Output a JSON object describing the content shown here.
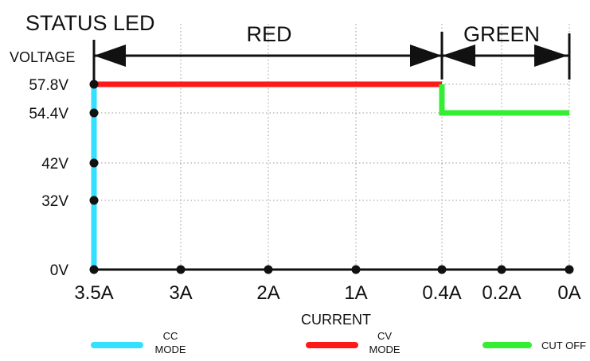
{
  "title": "STATUS LED",
  "bands": [
    {
      "label": "RED",
      "from": "3.5A",
      "to": "0.4A"
    },
    {
      "label": "GREEN",
      "from": "0.4A",
      "to": "0A"
    }
  ],
  "chart_data": {
    "type": "line",
    "xlabel": "CURRENT",
    "ylabel": "VOLTAGE",
    "x_ticks": [
      "3.5A",
      "3A",
      "2A",
      "1A",
      "0.4A",
      "0.2A",
      "0A"
    ],
    "y_ticks": [
      "0V",
      "32V",
      "42V",
      "54.4V",
      "57.8V"
    ],
    "grid": true,
    "series": [
      {
        "name": "CC MODE",
        "color": "#33e0ff",
        "points": [
          {
            "x": "3.5A",
            "y": "0V"
          },
          {
            "x": "3.5A",
            "y": "57.8V"
          }
        ]
      },
      {
        "name": "CV MODE",
        "color": "#ff1a1a",
        "points": [
          {
            "x": "3.5A",
            "y": "57.8V"
          },
          {
            "x": "0.4A",
            "y": "57.8V"
          }
        ]
      },
      {
        "name": "CUT OFF",
        "color": "#33ee33",
        "points": [
          {
            "x": "0.4A",
            "y": "57.8V"
          },
          {
            "x": "0.4A",
            "y": "54.4V"
          },
          {
            "x": "0A",
            "y": "54.4V"
          }
        ]
      }
    ]
  },
  "legend": [
    {
      "line1": "CC",
      "line2": "MODE",
      "color": "#33e0ff"
    },
    {
      "line1": "CV",
      "line2": "MODE",
      "color": "#ff1a1a"
    },
    {
      "line1": "CUT OFF",
      "line2": "",
      "color": "#33ee33"
    }
  ]
}
